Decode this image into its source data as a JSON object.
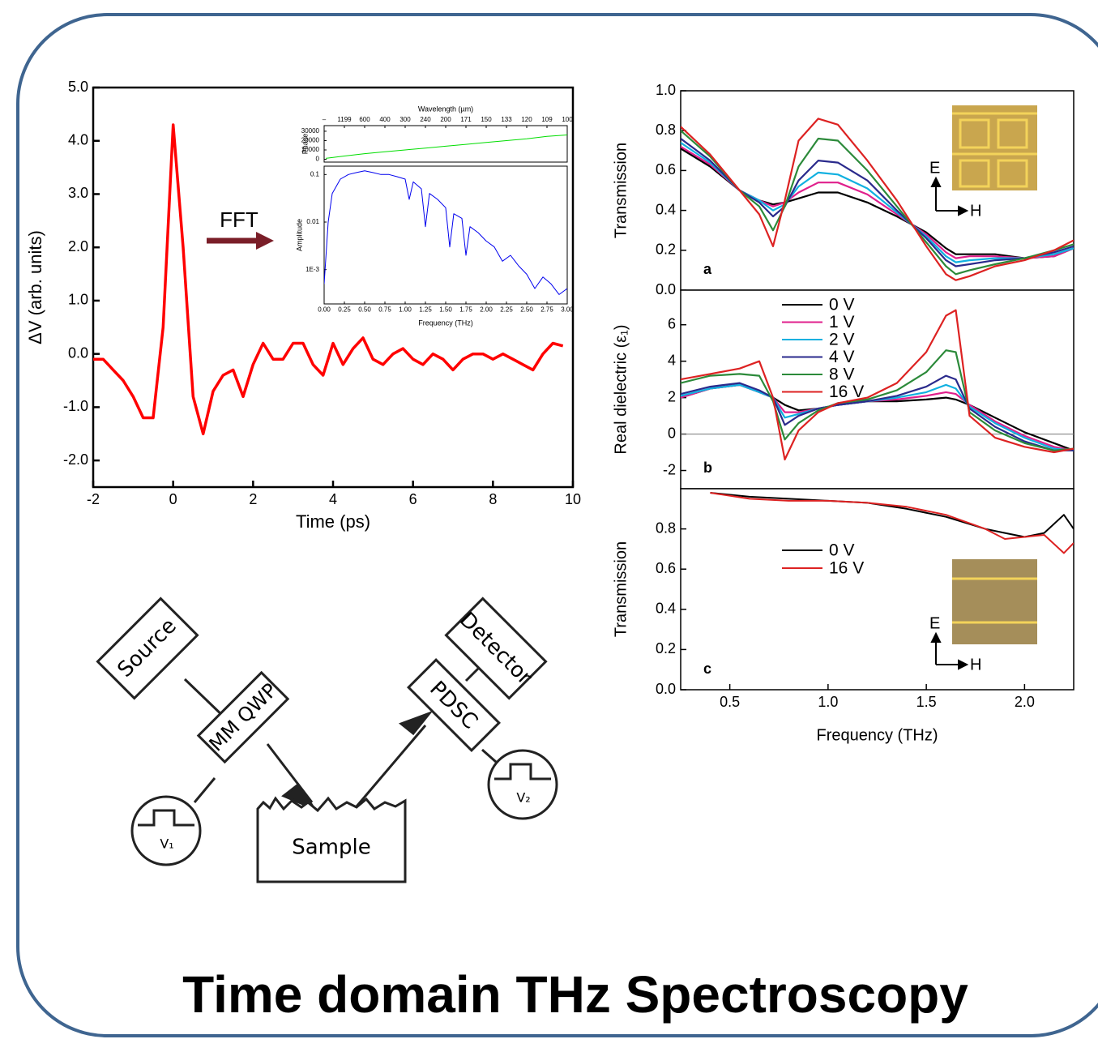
{
  "title": "Time domain THz Spectroscopy",
  "inset_labels": [
    "E",
    "H"
  ],
  "diagram": {
    "nodes": [
      "Source",
      "MM QWP",
      "Sample",
      "PDSC",
      "Detector",
      "V₁",
      "V₂"
    ]
  },
  "chart_data": [
    {
      "type": "line",
      "xlabel": "Time (ps)",
      "ylabel": "ΔV (arb. units)",
      "annotation": "FFT",
      "xlim": [
        -2,
        10
      ],
      "ylim": [
        -2.5,
        5
      ],
      "xticks": [
        -2,
        0,
        2,
        4,
        6,
        8,
        10
      ],
      "yticks": [
        {
          "value": 5,
          "label": "5.0"
        },
        {
          "value": 4,
          "label": "4.0"
        },
        {
          "value": 3,
          "label": "3.0"
        },
        {
          "value": 2,
          "label": "2.0"
        },
        {
          "value": 1,
          "label": "1.0"
        },
        {
          "value": 0,
          "label": "0.0"
        },
        {
          "value": -1,
          "label": "-1.0"
        },
        {
          "value": -2,
          "label": "-2.0"
        }
      ],
      "x": [
        -2,
        -1.75,
        -1.5,
        -1.25,
        -1,
        -0.75,
        -0.5,
        -0.25,
        0,
        0.25,
        0.5,
        0.75,
        1,
        1.25,
        1.5,
        1.75,
        2,
        2.25,
        2.5,
        2.75,
        3,
        3.25,
        3.5,
        3.75,
        4,
        4.25,
        4.5,
        4.75,
        5,
        5.25,
        5.5,
        5.75,
        6,
        6.25,
        6.5,
        6.75,
        7,
        7.25,
        7.5,
        7.75,
        8,
        8.25,
        8.5,
        8.75,
        9,
        9.25,
        9.5,
        9.75
      ],
      "series": [
        {
          "color": "#ff0000",
          "values": [
            -0.1,
            -0.1,
            -0.3,
            -0.5,
            -0.8,
            -1.2,
            -1.2,
            0.5,
            4.3,
            2.0,
            -0.8,
            -1.5,
            -0.7,
            -0.4,
            -0.3,
            -0.8,
            -0.2,
            0.2,
            -0.1,
            -0.1,
            0.2,
            0.2,
            -0.2,
            -0.4,
            0.2,
            -0.2,
            0.1,
            0.3,
            -0.1,
            -0.2,
            0.0,
            0.1,
            -0.1,
            -0.2,
            0.0,
            -0.1,
            -0.3,
            -0.1,
            0.0,
            0.0,
            -0.1,
            0.0,
            -0.1,
            -0.2,
            -0.3,
            0.0,
            0.2,
            0.15
          ]
        }
      ]
    },
    {
      "type": "line",
      "ylabel": "Phase",
      "x2label": "Wavelength (µm)",
      "xlim": [
        0,
        3
      ],
      "ylim": [
        -3000,
        36000
      ],
      "yticks": [
        0,
        10000,
        20000,
        30000
      ],
      "x2ticks": [
        {
          "value": 0,
          "label": "–"
        },
        {
          "value": 0.25,
          "label": "1199"
        },
        {
          "value": 0.5,
          "label": "600"
        },
        {
          "value": 0.75,
          "label": "400"
        },
        {
          "value": 1,
          "label": "300"
        },
        {
          "value": 1.25,
          "label": "240"
        },
        {
          "value": 1.5,
          "label": "200"
        },
        {
          "value": 1.75,
          "label": "171"
        },
        {
          "value": 2,
          "label": "150"
        },
        {
          "value": 2.25,
          "label": "133"
        },
        {
          "value": 2.5,
          "label": "120"
        },
        {
          "value": 2.75,
          "label": "109"
        },
        {
          "value": 3,
          "label": "100"
        }
      ],
      "x": [
        0.02,
        0.25,
        0.5,
        0.75,
        1,
        1.25,
        1.5,
        1.75,
        2,
        2.25,
        2.5,
        2.75,
        3
      ],
      "series": [
        {
          "color": "#00dd00",
          "values": [
            1000,
            3500,
            6000,
            8000,
            10000,
            12000,
            14000,
            16000,
            18000,
            20000,
            22000,
            24500,
            26000
          ]
        }
      ]
    },
    {
      "type": "line",
      "ylabel": "Amplitude",
      "xlabel": "Frequency (THz)",
      "log_y": true,
      "xlim": [
        0,
        3
      ],
      "ylim": [
        0.00019,
        0.15
      ],
      "xticks": [
        {
          "value": 0,
          "label": "0.00"
        },
        {
          "value": 0.25,
          "label": "0.25"
        },
        {
          "value": 0.5,
          "label": "0.50"
        },
        {
          "value": 0.75,
          "label": "0.75"
        },
        {
          "value": 1,
          "label": "1.00"
        },
        {
          "value": 1.25,
          "label": "1.25"
        },
        {
          "value": 1.5,
          "label": "1.50"
        },
        {
          "value": 1.75,
          "label": "1.75"
        },
        {
          "value": 2,
          "label": "2.00"
        },
        {
          "value": 2.25,
          "label": "2.25"
        },
        {
          "value": 2.5,
          "label": "2.50"
        },
        {
          "value": 2.75,
          "label": "2.75"
        },
        {
          "value": 3,
          "label": "3.00"
        }
      ],
      "yticks": [
        {
          "value": 0.001,
          "label": "1E-3"
        },
        0.01,
        0.1
      ],
      "x": [
        0,
        0.05,
        0.1,
        0.2,
        0.3,
        0.4,
        0.5,
        0.6,
        0.7,
        0.8,
        0.9,
        1.0,
        1.05,
        1.1,
        1.2,
        1.25,
        1.3,
        1.4,
        1.5,
        1.55,
        1.6,
        1.7,
        1.75,
        1.8,
        1.9,
        2.0,
        2.1,
        2.2,
        2.3,
        2.4,
        2.5,
        2.6,
        2.7,
        2.8,
        2.9,
        3.0
      ],
      "series": [
        {
          "color": "#0000ee",
          "values": [
            0.0005,
            0.01,
            0.04,
            0.08,
            0.1,
            0.11,
            0.12,
            0.11,
            0.1,
            0.1,
            0.09,
            0.08,
            0.03,
            0.07,
            0.05,
            0.008,
            0.04,
            0.03,
            0.02,
            0.003,
            0.015,
            0.012,
            0.002,
            0.008,
            0.006,
            0.004,
            0.003,
            0.0015,
            0.002,
            0.0012,
            0.0008,
            0.0004,
            0.0007,
            0.0005,
            0.0003,
            0.0004
          ]
        }
      ]
    },
    {
      "type": "line",
      "ylabel": "Transmission",
      "panel_label": "a",
      "xlim": [
        0.25,
        2.25
      ],
      "ylim": [
        0,
        1
      ],
      "yticks": [
        {
          "value": 0,
          "label": "0.0"
        },
        {
          "value": 0.2,
          "label": "0.2"
        },
        {
          "value": 0.4,
          "label": "0.4"
        },
        {
          "value": 0.6,
          "label": "0.6"
        },
        {
          "value": 0.8,
          "label": "0.8"
        },
        {
          "value": 1,
          "label": "1.0"
        }
      ],
      "x": [
        0.25,
        0.4,
        0.55,
        0.65,
        0.72,
        0.78,
        0.85,
        0.95,
        1.05,
        1.2,
        1.35,
        1.5,
        1.6,
        1.65,
        1.72,
        1.85,
        2.0,
        2.15,
        2.25
      ],
      "series": [
        {
          "color": "#000000",
          "values": [
            0.71,
            0.62,
            0.5,
            0.45,
            0.43,
            0.44,
            0.46,
            0.49,
            0.49,
            0.44,
            0.37,
            0.29,
            0.21,
            0.18,
            0.18,
            0.18,
            0.16,
            0.17,
            0.21
          ]
        },
        {
          "color": "#e0208c",
          "values": [
            0.72,
            0.63,
            0.5,
            0.45,
            0.42,
            0.44,
            0.49,
            0.54,
            0.54,
            0.48,
            0.38,
            0.28,
            0.19,
            0.16,
            0.17,
            0.17,
            0.16,
            0.17,
            0.21
          ]
        },
        {
          "color": "#10b0e0",
          "values": [
            0.74,
            0.64,
            0.5,
            0.45,
            0.4,
            0.43,
            0.52,
            0.59,
            0.58,
            0.51,
            0.39,
            0.27,
            0.17,
            0.14,
            0.15,
            0.16,
            0.16,
            0.18,
            0.21
          ]
        },
        {
          "color": "#2a2a8c",
          "values": [
            0.76,
            0.65,
            0.5,
            0.44,
            0.37,
            0.42,
            0.55,
            0.65,
            0.64,
            0.55,
            0.4,
            0.26,
            0.15,
            0.12,
            0.13,
            0.15,
            0.16,
            0.19,
            0.22
          ]
        },
        {
          "color": "#2c8a3a",
          "values": [
            0.8,
            0.67,
            0.5,
            0.42,
            0.3,
            0.42,
            0.62,
            0.76,
            0.75,
            0.6,
            0.42,
            0.24,
            0.12,
            0.08,
            0.1,
            0.13,
            0.16,
            0.2,
            0.23
          ]
        },
        {
          "color": "#dd2222",
          "values": [
            0.82,
            0.68,
            0.5,
            0.38,
            0.22,
            0.45,
            0.75,
            0.86,
            0.83,
            0.65,
            0.45,
            0.22,
            0.08,
            0.05,
            0.07,
            0.12,
            0.15,
            0.2,
            0.25
          ]
        }
      ]
    },
    {
      "type": "line",
      "ylabel": "Real dielectric (ε₁)",
      "panel_label": "b",
      "legend": true,
      "reference_line": 0,
      "xlim": [
        0.25,
        2.25
      ],
      "ylim": [
        -3,
        7.9
      ],
      "yticks": [
        -2,
        0,
        2,
        4,
        6
      ],
      "x": [
        0.25,
        0.4,
        0.55,
        0.65,
        0.72,
        0.78,
        0.85,
        0.95,
        1.05,
        1.2,
        1.35,
        1.5,
        1.6,
        1.65,
        1.72,
        1.85,
        2.0,
        2.15,
        2.25
      ],
      "series": [
        {
          "name": "0 V",
          "color": "#000000",
          "values": [
            2.0,
            2.5,
            2.7,
            2.3,
            2.0,
            1.6,
            1.3,
            1.4,
            1.6,
            1.8,
            1.8,
            1.9,
            2.0,
            1.9,
            1.6,
            0.9,
            0.1,
            -0.5,
            -0.9
          ]
        },
        {
          "name": "1 V",
          "color": "#e0208c",
          "values": [
            2.0,
            2.5,
            2.7,
            2.3,
            2.0,
            1.2,
            1.2,
            1.4,
            1.6,
            1.8,
            1.9,
            2.1,
            2.3,
            2.2,
            1.6,
            0.7,
            -0.1,
            -0.7,
            -0.9
          ]
        },
        {
          "name": "2 V",
          "color": "#10b0e0",
          "values": [
            2.1,
            2.5,
            2.7,
            2.3,
            2.0,
            0.9,
            1.1,
            1.4,
            1.6,
            1.8,
            2.0,
            2.3,
            2.7,
            2.5,
            1.5,
            0.6,
            -0.2,
            -0.8,
            -0.9
          ]
        },
        {
          "name": "4 V",
          "color": "#2a2a8c",
          "values": [
            2.2,
            2.6,
            2.8,
            2.4,
            2.0,
            0.5,
            1.0,
            1.4,
            1.6,
            1.8,
            2.1,
            2.6,
            3.2,
            3.0,
            1.4,
            0.4,
            -0.4,
            -0.9,
            -0.9
          ]
        },
        {
          "name": "8 V",
          "color": "#2c8a3a",
          "values": [
            2.8,
            3.2,
            3.3,
            3.2,
            1.8,
            -0.3,
            0.6,
            1.3,
            1.7,
            1.9,
            2.4,
            3.4,
            4.6,
            4.5,
            1.2,
            0.2,
            -0.5,
            -0.9,
            -0.8
          ]
        },
        {
          "name": "16 V",
          "color": "#dd2222",
          "values": [
            3.0,
            3.3,
            3.6,
            4.0,
            2.0,
            -1.4,
            0.2,
            1.2,
            1.7,
            2.0,
            2.8,
            4.5,
            6.5,
            6.8,
            1.0,
            -0.2,
            -0.7,
            -1.0,
            -0.8
          ]
        }
      ]
    },
    {
      "type": "line",
      "ylabel": "Transmission",
      "xlabel": "Frequency (THz)",
      "panel_label": "c",
      "legend": true,
      "xlim": [
        0.25,
        2.25
      ],
      "ylim": [
        0,
        1
      ],
      "xticks": [
        {
          "value": 0.5,
          "label": "0.5"
        },
        {
          "value": 1,
          "label": "1.0"
        },
        {
          "value": 1.5,
          "label": "1.5"
        },
        {
          "value": 2,
          "label": "2.0"
        }
      ],
      "yticks": [
        {
          "value": 0,
          "label": "0.0"
        },
        {
          "value": 0.2,
          "label": "0.2"
        },
        {
          "value": 0.4,
          "label": "0.4"
        },
        {
          "value": 0.6,
          "label": "0.6"
        },
        {
          "value": 0.8,
          "label": "0.8"
        }
      ],
      "x": [
        0.4,
        0.6,
        0.8,
        1.0,
        1.2,
        1.4,
        1.6,
        1.8,
        1.9,
        2.0,
        2.1,
        2.2,
        2.25
      ],
      "series": [
        {
          "name": "0 V",
          "color": "#000000",
          "values": [
            0.98,
            0.96,
            0.95,
            0.94,
            0.93,
            0.9,
            0.86,
            0.8,
            0.78,
            0.76,
            0.78,
            0.87,
            0.8
          ]
        },
        {
          "name": "16 V",
          "color": "#dd2222",
          "values": [
            0.98,
            0.95,
            0.94,
            0.94,
            0.93,
            0.91,
            0.87,
            0.8,
            0.75,
            0.76,
            0.77,
            0.68,
            0.73
          ]
        }
      ]
    }
  ]
}
